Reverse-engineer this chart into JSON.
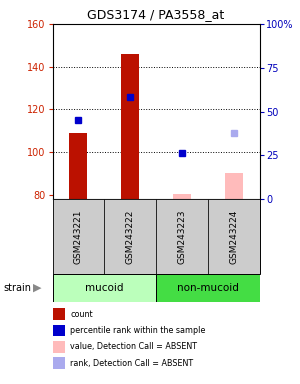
{
  "title": "GDS3174 / PA3558_at",
  "samples": [
    "GSM243221",
    "GSM243222",
    "GSM243223",
    "GSM243224"
  ],
  "strain_groups": [
    {
      "label": "mucoid",
      "samples": [
        0,
        1
      ],
      "color": "#bbffbb"
    },
    {
      "label": "non-mucoid",
      "samples": [
        2,
        3
      ],
      "color": "#44dd44"
    }
  ],
  "ylim_left": [
    78,
    160
  ],
  "ylim_right": [
    0,
    100
  ],
  "yticks_left": [
    80,
    100,
    120,
    140,
    160
  ],
  "yticks_right": [
    0,
    25,
    50,
    75,
    100
  ],
  "yticklabels_right": [
    "0",
    "25",
    "50",
    "75",
    "100%"
  ],
  "bars_present": [
    {
      "x": 0,
      "value": 109,
      "color": "#bb1100"
    },
    {
      "x": 1,
      "value": 146,
      "color": "#bb1100"
    }
  ],
  "bars_absent": [
    {
      "x": 2,
      "value": 80.5,
      "color": "#ffbbbb"
    },
    {
      "x": 3,
      "value": 90,
      "color": "#ffbbbb"
    }
  ],
  "dots_present": [
    {
      "x": 0,
      "value": 115,
      "color": "#0000cc"
    },
    {
      "x": 1,
      "value": 126,
      "color": "#0000cc"
    }
  ],
  "dots_absent": [
    {
      "x": 2,
      "value": 99.5,
      "color": "#0000cc"
    },
    {
      "x": 3,
      "value": 109,
      "color": "#aaaaee"
    }
  ],
  "bar_width": 0.35,
  "dot_size": 5,
  "grid_dotted_yticks": [
    100,
    120,
    140
  ],
  "left_color": "#cc2200",
  "right_color": "#0000bb",
  "sample_box_bg": "#cccccc",
  "legend_items": [
    {
      "color": "#bb1100",
      "label": "count"
    },
    {
      "color": "#0000cc",
      "label": "percentile rank within the sample"
    },
    {
      "color": "#ffbbbb",
      "label": "value, Detection Call = ABSENT"
    },
    {
      "color": "#aaaaee",
      "label": "rank, Detection Call = ABSENT"
    }
  ]
}
